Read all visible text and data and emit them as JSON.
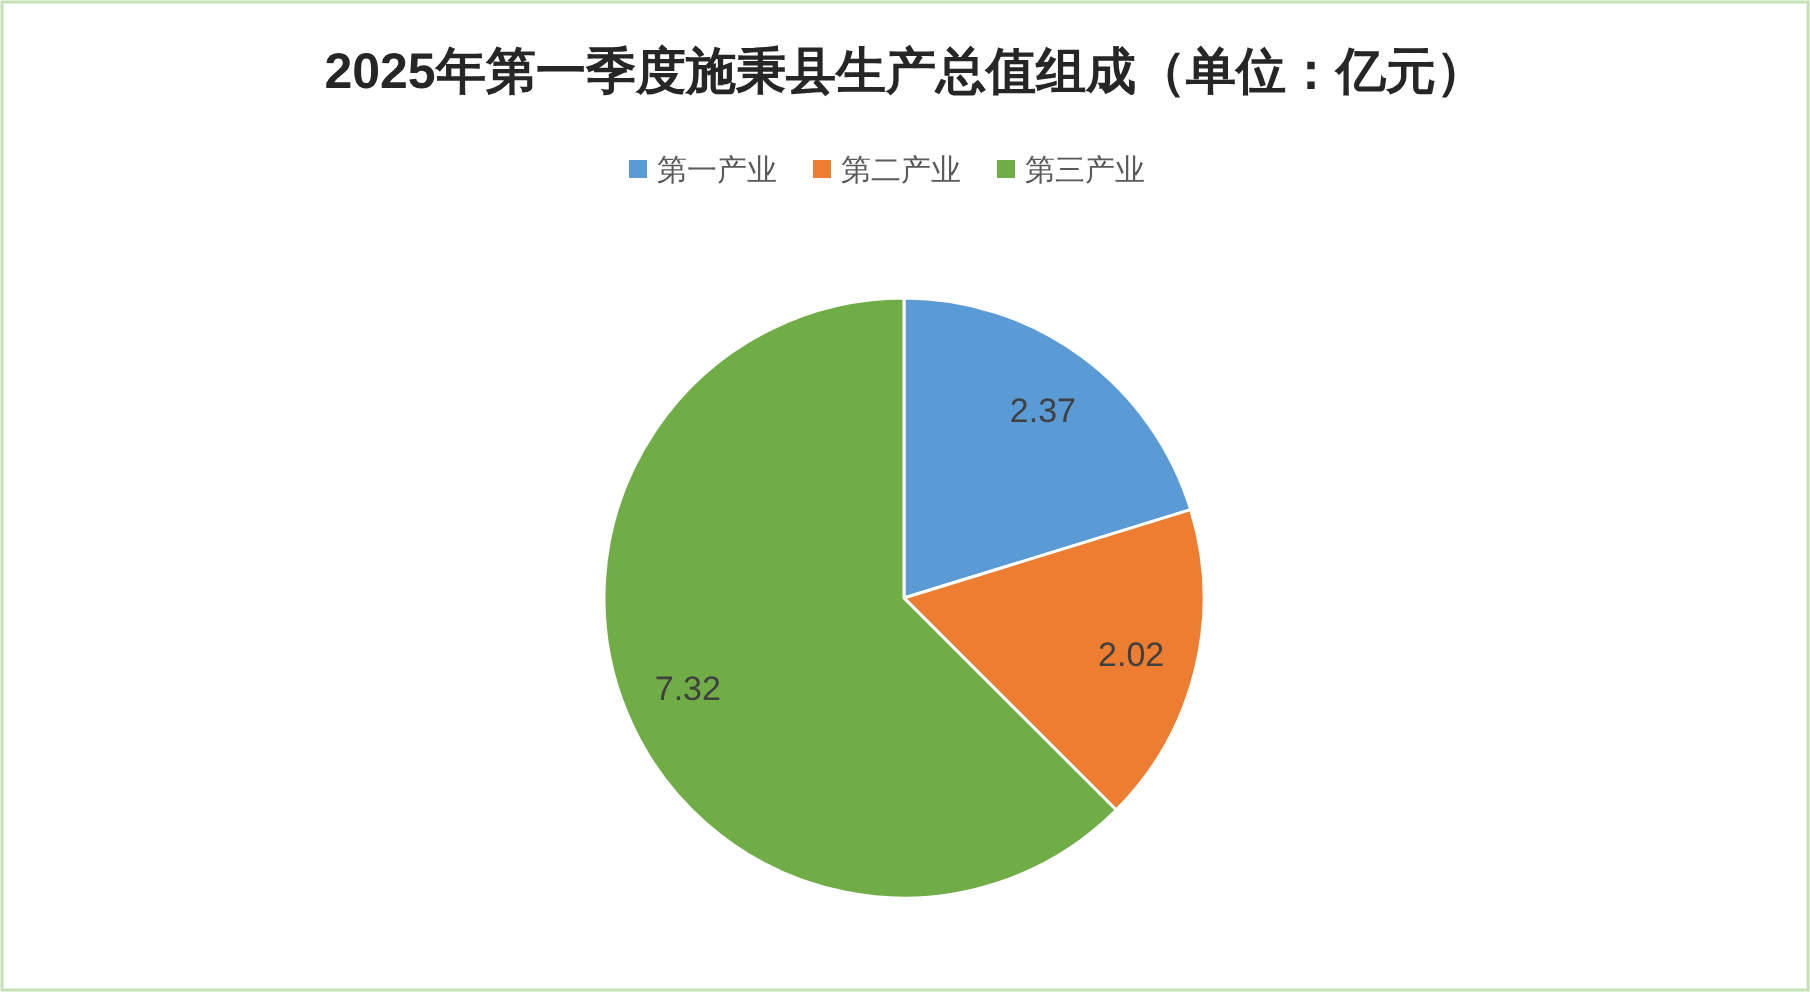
{
  "chart_data": {
    "type": "pie",
    "title": "2025年第一季度施秉县生产总值组成（单位：亿元）",
    "categories": [
      "第一产业",
      "第二产业",
      "第三产业"
    ],
    "values": [
      2.37,
      2.02,
      7.32
    ],
    "colors": [
      "#5b9bd5",
      "#ed7d31",
      "#70ad47"
    ],
    "data_labels": true,
    "legend": "top"
  }
}
